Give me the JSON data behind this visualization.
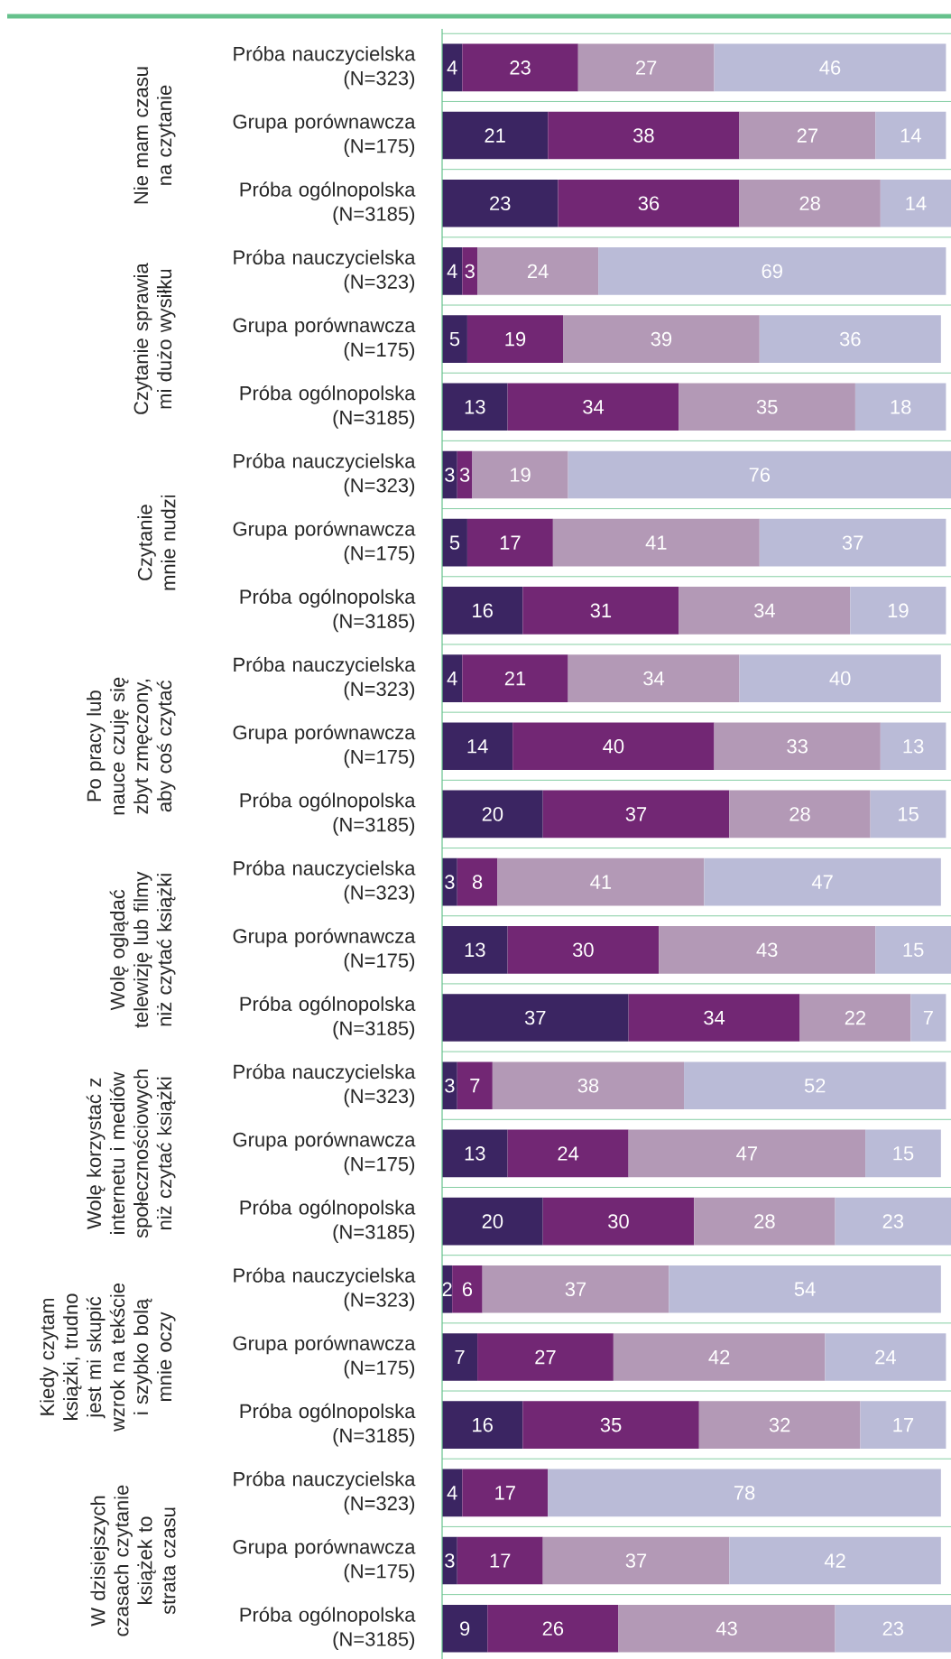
{
  "chart_data": {
    "type": "bar",
    "orientation": "horizontal",
    "stacked": true,
    "data_labels": true,
    "grid": "y",
    "tick_labels": "y",
    "xlim": [
      0,
      101
    ],
    "categories": [
      "Próba nauczycielska (N=323)",
      "Grupa porównawcza (N=175)",
      "Próba ogólnopolska (N=3185)",
      "Próba nauczycielska (N=323)",
      "Grupa porównawcza (N=175)",
      "Próba ogólnopolska (N=3185)",
      "Próba nauczycielska (N=323)",
      "Grupa porównawcza (N=175)",
      "Próba ogólnopolska (N=3185)",
      "Próba nauczycielska (N=323)",
      "Grupa porównawcza (N=175)",
      "Próba ogólnopolska (N=3185)",
      "Próba nauczycielska (N=323)",
      "Grupa porównawcza (N=175)",
      "Próba ogólnopolska (N=3185)",
      "Próba nauczycielska (N=323)",
      "Grupa porównawcza (N=175)",
      "Próba ogólnopolska (N=3185)",
      "Próba nauczycielska (N=323)",
      "Grupa porównawcza (N=175)",
      "Próba ogólnopolska (N=3185)",
      "Próba nauczycielska (N=323)",
      "Grupa porównawcza (N=175)",
      "Próba ogólnopolska (N=3185)"
    ],
    "series": [
      {
        "color": "#3b2562",
        "values": [
          4,
          21,
          23,
          4,
          5,
          13,
          3,
          5,
          16,
          4,
          14,
          20,
          3,
          13,
          37,
          3,
          13,
          20,
          2,
          7,
          16,
          4,
          3,
          9
        ]
      },
      {
        "color": "#722774",
        "values": [
          23,
          38,
          36,
          3,
          19,
          34,
          3,
          17,
          31,
          21,
          40,
          37,
          8,
          30,
          34,
          7,
          24,
          30,
          6,
          27,
          35,
          17,
          17,
          26
        ]
      },
      {
        "color": "#b399b6",
        "values": [
          27,
          27,
          28,
          24,
          39,
          35,
          19,
          41,
          34,
          34,
          33,
          28,
          41,
          43,
          22,
          38,
          47,
          28,
          37,
          42,
          32,
          null,
          37,
          43
        ]
      },
      {
        "color": "#babbd7",
        "values": [
          46,
          14,
          14,
          69,
          36,
          18,
          76,
          37,
          19,
          40,
          13,
          15,
          47,
          15,
          7,
          52,
          15,
          23,
          54,
          24,
          17,
          78,
          42,
          23
        ]
      }
    ],
    "annotations": [
      "Nie mam czasu na czytanie",
      "Czytanie sprawia mi dużo wysiłku",
      "Czytanie mnie nudzi",
      "Po pracy lub nauce czuję się zbyt zmęczony, aby coś czytać",
      "Wolę oglądać telewizję lub filmy niż czytać książki",
      "Wolę korzystać z internetu i mediów społecznościowych niż czytać książki",
      "Kiedy czytam książki, trudno jest mi skupić wzrok na tekście i szybko bolą mnie oczy",
      "W dzisiejszych czasach czytanie książek to strata czasu"
    ]
  }
}
